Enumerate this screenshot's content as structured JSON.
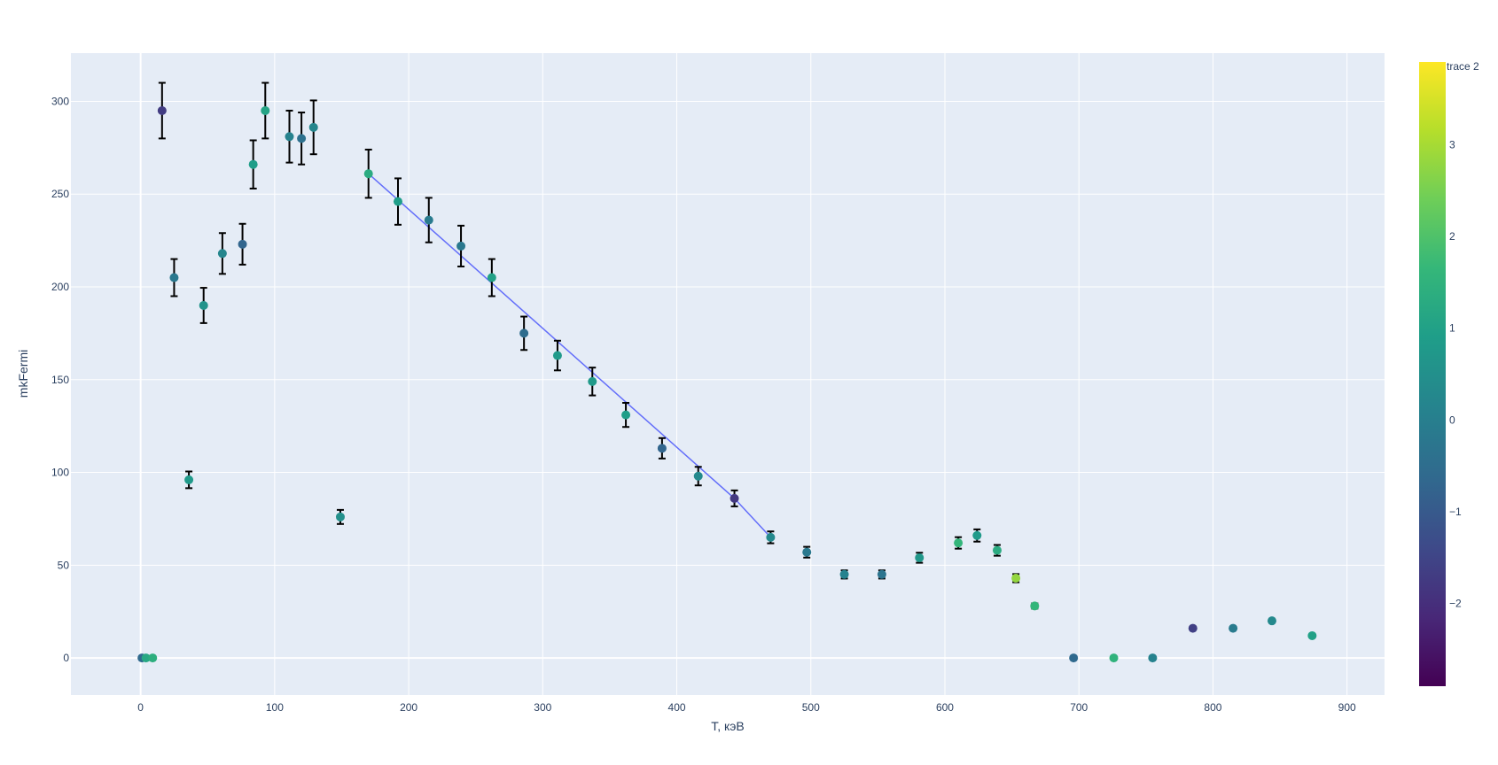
{
  "chart_data": {
    "type": "scatter",
    "xlabel": "T, кэВ",
    "ylabel": "mkFermi",
    "xlim": [
      -52,
      928
    ],
    "ylim": [
      -20,
      326
    ],
    "x_ticks": [
      0,
      100,
      200,
      300,
      400,
      500,
      600,
      700,
      800,
      900
    ],
    "y_ticks": [
      0,
      50,
      100,
      150,
      200,
      250,
      300
    ],
    "grid": true,
    "colorbar": {
      "title": "trace 2",
      "colorscale": "Viridis",
      "range": [
        -2.9,
        3.9
      ],
      "ticks": [
        -2,
        -1,
        0,
        1,
        2,
        3
      ],
      "tick_labels": [
        "−2",
        "−1",
        "0",
        "1",
        "2",
        "3"
      ]
    },
    "points": [
      {
        "x": 1,
        "y": 0,
        "c": -0.6
      },
      {
        "x": 4,
        "y": 0,
        "c": 1.2
      },
      {
        "x": 9,
        "y": 0,
        "c": 1.4
      },
      {
        "x": 16,
        "y": 295,
        "c": -1.7,
        "err": 15
      },
      {
        "x": 25,
        "y": 205,
        "c": -0.2,
        "err": 10
      },
      {
        "x": 36,
        "y": 96,
        "c": 0.8,
        "err": 4.5
      },
      {
        "x": 47,
        "y": 190,
        "c": 0.6,
        "err": 9.5
      },
      {
        "x": 61,
        "y": 218,
        "c": 0.2,
        "err": 11
      },
      {
        "x": 76,
        "y": 223,
        "c": -0.7,
        "err": 11
      },
      {
        "x": 84,
        "y": 266,
        "c": 0.9,
        "err": 13
      },
      {
        "x": 93,
        "y": 295,
        "c": 1.1,
        "err": 15
      },
      {
        "x": 111,
        "y": 281,
        "c": 0.1,
        "err": 14
      },
      {
        "x": 120,
        "y": 280,
        "c": -0.4,
        "err": 14
      },
      {
        "x": 129,
        "y": 286,
        "c": 0.2,
        "err": 14.5
      },
      {
        "x": 149,
        "y": 76,
        "c": 0.5,
        "err": 3.8
      },
      {
        "x": 170,
        "y": 261,
        "c": 1.3,
        "err": 13
      },
      {
        "x": 192,
        "y": 246,
        "c": 0.9,
        "err": 12.5
      },
      {
        "x": 215,
        "y": 236,
        "c": -0.1,
        "err": 12
      },
      {
        "x": 239,
        "y": 222,
        "c": -0.2,
        "err": 11
      },
      {
        "x": 262,
        "y": 205,
        "c": 1.0,
        "err": 10
      },
      {
        "x": 286,
        "y": 175,
        "c": -0.5,
        "err": 9
      },
      {
        "x": 311,
        "y": 163,
        "c": 0.8,
        "err": 8
      },
      {
        "x": 337,
        "y": 149,
        "c": 0.8,
        "err": 7.5
      },
      {
        "x": 362,
        "y": 131,
        "c": 0.9,
        "err": 6.5
      },
      {
        "x": 389,
        "y": 113,
        "c": -0.7,
        "err": 5.5
      },
      {
        "x": 416,
        "y": 98,
        "c": 0.3,
        "err": 5
      },
      {
        "x": 443,
        "y": 86,
        "c": -1.8,
        "err": 4.3
      },
      {
        "x": 470,
        "y": 65,
        "c": 0.3,
        "err": 3.2
      },
      {
        "x": 497,
        "y": 57,
        "c": -0.2,
        "err": 2.9
      },
      {
        "x": 525,
        "y": 45,
        "c": 0.1,
        "err": 2.2
      },
      {
        "x": 553,
        "y": 45,
        "c": -0.3,
        "err": 2.2
      },
      {
        "x": 581,
        "y": 54,
        "c": 0.7,
        "err": 2.7
      },
      {
        "x": 610,
        "y": 62,
        "c": 1.6,
        "err": 3.1
      },
      {
        "x": 624,
        "y": 66,
        "c": 0.8,
        "err": 3.3
      },
      {
        "x": 639,
        "y": 58,
        "c": 1.3,
        "err": 2.9
      },
      {
        "x": 653,
        "y": 43,
        "c": 2.8,
        "err": 2.2
      },
      {
        "x": 667,
        "y": 28,
        "c": 1.6,
        "err": 1.4
      },
      {
        "x": 696,
        "y": 0,
        "c": -0.6
      },
      {
        "x": 726,
        "y": 0,
        "c": 1.5
      },
      {
        "x": 755,
        "y": 0,
        "c": 0.1
      },
      {
        "x": 785,
        "y": 16,
        "c": -1.6
      },
      {
        "x": 815,
        "y": 16,
        "c": -0.1
      },
      {
        "x": 844,
        "y": 20,
        "c": 0.3
      },
      {
        "x": 874,
        "y": 12,
        "c": 1.0
      }
    ],
    "fit_line": {
      "color": "#636efa",
      "x": [
        170,
        443,
        470
      ],
      "y": [
        261,
        86,
        65
      ]
    }
  }
}
